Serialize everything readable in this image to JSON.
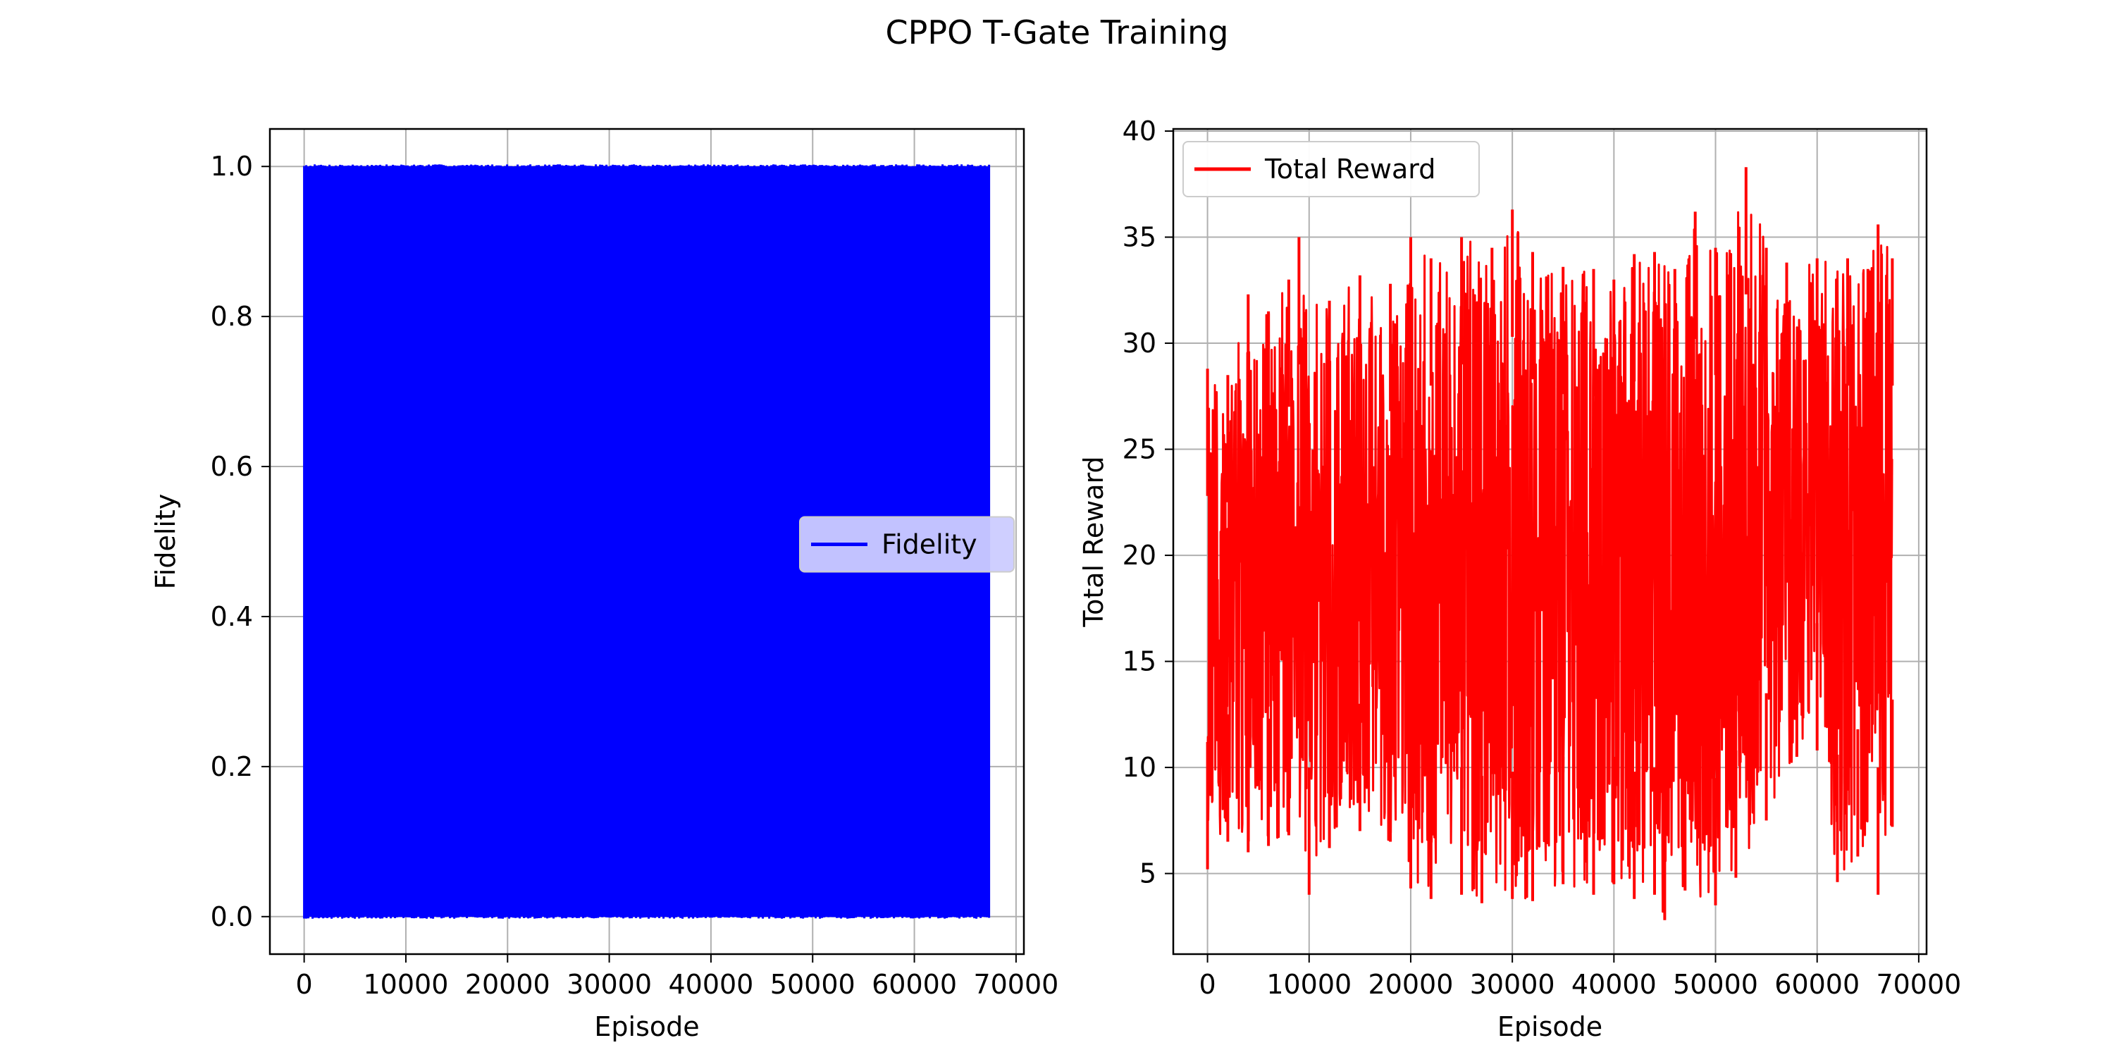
{
  "figure": {
    "title": "CPPO T-Gate Training"
  },
  "chart_data": [
    {
      "type": "line",
      "xlabel": "Episode",
      "ylabel": "Fidelity",
      "xlim": [
        -3370,
        70770
      ],
      "ylim": [
        -0.05,
        1.05
      ],
      "xticks": [
        0,
        10000,
        20000,
        30000,
        40000,
        50000,
        60000,
        70000
      ],
      "xtick_labels": [
        "0",
        "10000",
        "20000",
        "30000",
        "40000",
        "50000",
        "60000",
        "70000"
      ],
      "yticks": [
        0.0,
        0.2,
        0.4,
        0.6,
        0.8,
        1.0
      ],
      "ytick_labels": [
        "0.0",
        "0.2",
        "0.4",
        "0.6",
        "0.8",
        "1.0"
      ],
      "grid": true,
      "legend": "center-right",
      "series": [
        {
          "name": "Fidelity",
          "color": "#0000ff",
          "x_range": [
            0,
            67400
          ],
          "min": 0.0,
          "max": 1.0,
          "note_visual": "dense oscillation filling the band"
        }
      ]
    },
    {
      "type": "line",
      "xlabel": "Episode",
      "ylabel": "Total Reward",
      "xlim": [
        -3370,
        70770
      ],
      "ylim": [
        1.2,
        40.1
      ],
      "xticks": [
        0,
        10000,
        20000,
        30000,
        40000,
        50000,
        60000,
        70000
      ],
      "xtick_labels": [
        "0",
        "10000",
        "20000",
        "30000",
        "40000",
        "50000",
        "60000",
        "70000"
      ],
      "yticks": [
        5,
        10,
        15,
        20,
        25,
        30,
        35,
        40
      ],
      "ytick_labels": [
        "5",
        "10",
        "15",
        "20",
        "25",
        "30",
        "35",
        "40"
      ],
      "grid": true,
      "legend": "top-left",
      "series": [
        {
          "name": "Total Reward",
          "color": "#ff0000",
          "x_range": [
            0,
            67400
          ],
          "upper_envelope": [
            [
              0,
              28.8
            ],
            [
              2000,
              28.5
            ],
            [
              4000,
              32.3
            ],
            [
              6000,
              31.5
            ],
            [
              8000,
              33.0
            ],
            [
              9000,
              35.0
            ],
            [
              12000,
              32.0
            ],
            [
              15000,
              33.2
            ],
            [
              18000,
              32.8
            ],
            [
              20000,
              35.0
            ],
            [
              22000,
              34.0
            ],
            [
              25000,
              35.0
            ],
            [
              28000,
              34.5
            ],
            [
              30000,
              36.3
            ],
            [
              32000,
              34.3
            ],
            [
              35000,
              33.6
            ],
            [
              38000,
              33.5
            ],
            [
              40000,
              33.0
            ],
            [
              42000,
              34.2
            ],
            [
              44000,
              34.3
            ],
            [
              46000,
              33.5
            ],
            [
              48000,
              36.2
            ],
            [
              50000,
              34.5
            ],
            [
              53000,
              38.3
            ],
            [
              55000,
              34.5
            ],
            [
              57000,
              33.8
            ],
            [
              60000,
              34.0
            ],
            [
              63000,
              34.0
            ],
            [
              65000,
              33.5
            ],
            [
              66000,
              35.6
            ],
            [
              67400,
              34.0
            ]
          ],
          "lower_envelope": [
            [
              0,
              5.2
            ],
            [
              2000,
              6.5
            ],
            [
              4000,
              6.0
            ],
            [
              6000,
              6.3
            ],
            [
              8000,
              6.8
            ],
            [
              10000,
              4.0
            ],
            [
              12000,
              6.2
            ],
            [
              15000,
              7.0
            ],
            [
              18000,
              6.5
            ],
            [
              20000,
              4.3
            ],
            [
              22000,
              3.8
            ],
            [
              25000,
              4.0
            ],
            [
              27000,
              3.6
            ],
            [
              30000,
              3.8
            ],
            [
              32000,
              3.7
            ],
            [
              35000,
              4.5
            ],
            [
              38000,
              4.0
            ],
            [
              40000,
              4.5
            ],
            [
              42000,
              3.8
            ],
            [
              44000,
              4.0
            ],
            [
              45000,
              2.8
            ],
            [
              47000,
              4.2
            ],
            [
              50000,
              3.5
            ],
            [
              52000,
              4.8
            ],
            [
              55000,
              7.5
            ],
            [
              58000,
              10.5
            ],
            [
              60000,
              10.8
            ],
            [
              62000,
              4.6
            ],
            [
              64000,
              5.8
            ],
            [
              66000,
              4.0
            ],
            [
              67400,
              7.2
            ]
          ]
        }
      ]
    }
  ]
}
